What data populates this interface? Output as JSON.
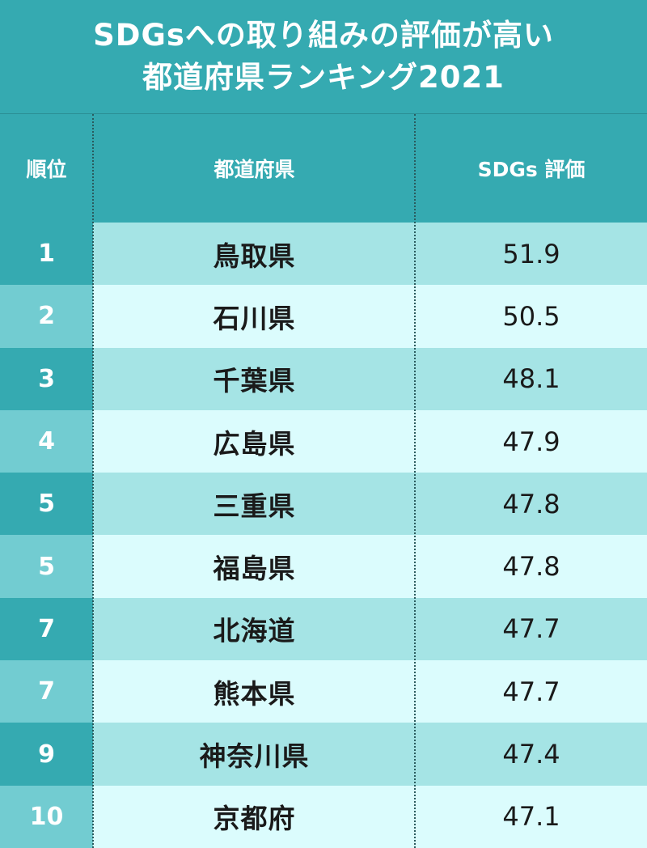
{
  "title": {
    "line1": "SDGsへの取り組みの評価が高い",
    "line2": "都道府県ランキング2021"
  },
  "header": {
    "rank": "順位",
    "prefecture": "都道府県",
    "score": "SDGs 評価"
  },
  "colors": {
    "header_bg": "#35aab1",
    "row_odd": "#a5e4e5",
    "row_even": "#dbfcfd",
    "rank_odd": "#35aab1",
    "rank_even": "#72ccd1"
  },
  "chart_data": {
    "type": "table",
    "columns": [
      "順位",
      "都道府県",
      "SDGs 評価"
    ],
    "rows": [
      {
        "rank": "1",
        "prefecture": "鳥取県",
        "score": "51.9"
      },
      {
        "rank": "2",
        "prefecture": "石川県",
        "score": "50.5"
      },
      {
        "rank": "3",
        "prefecture": "千葉県",
        "score": "48.1"
      },
      {
        "rank": "4",
        "prefecture": "広島県",
        "score": "47.9"
      },
      {
        "rank": "5",
        "prefecture": "三重県",
        "score": "47.8"
      },
      {
        "rank": "5",
        "prefecture": "福島県",
        "score": "47.8"
      },
      {
        "rank": "7",
        "prefecture": "北海道",
        "score": "47.7"
      },
      {
        "rank": "7",
        "prefecture": "熊本県",
        "score": "47.7"
      },
      {
        "rank": "9",
        "prefecture": "神奈川県",
        "score": "47.4"
      },
      {
        "rank": "10",
        "prefecture": "京都府",
        "score": "47.1"
      }
    ]
  }
}
